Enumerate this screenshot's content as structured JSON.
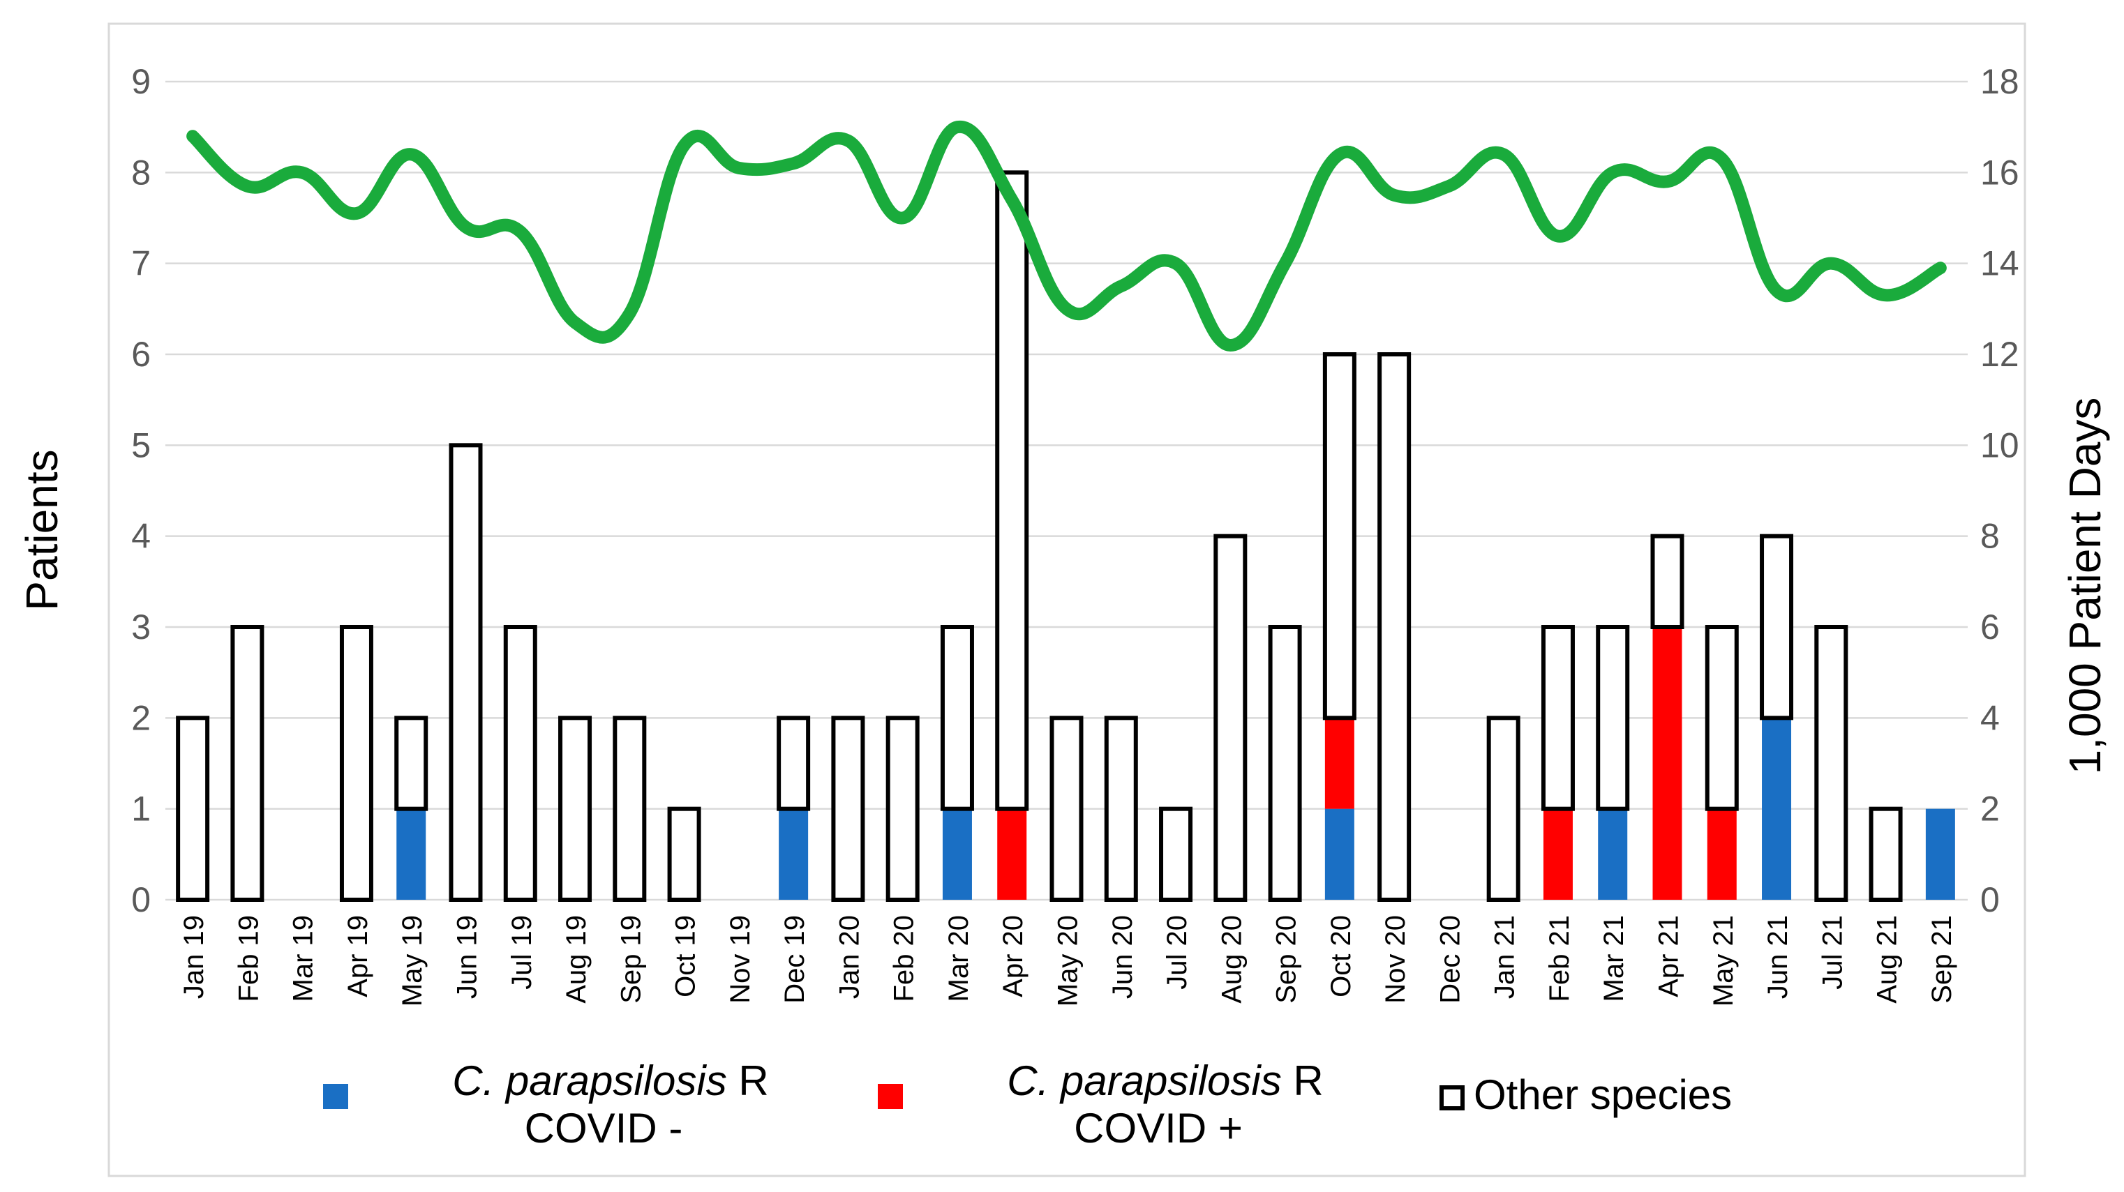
{
  "chart_data": {
    "type": "bar",
    "stacked": true,
    "categories": [
      "Jan 19",
      "Feb 19",
      "Mar 19",
      "Apr 19",
      "May 19",
      "Jun 19",
      "Jul 19",
      "Aug 19",
      "Sep 19",
      "Oct 19",
      "Nov 19",
      "Dec 19",
      "Jan 20",
      "Feb 20",
      "Mar 20",
      "Apr 20",
      "May 20",
      "Jun 20",
      "Jul 20",
      "Aug 20",
      "Sep 20",
      "Oct 20",
      "Nov 20",
      "Dec 20",
      "Jan 21",
      "Feb 21",
      "Mar 21",
      "Apr 21",
      "May 21",
      "Jun 21",
      "Jul 21",
      "Aug 21",
      "Sep 21"
    ],
    "series": [
      {
        "name": "C. parapsilosis R COVID -",
        "italic_part": "C. parapsilosis",
        "suffix": " R",
        "line2": "COVID -",
        "color": "#1a6fc4",
        "style": "filled",
        "values": [
          0,
          0,
          0,
          0,
          1,
          0,
          0,
          0,
          0,
          0,
          0,
          1,
          0,
          0,
          1,
          0,
          0,
          0,
          0,
          0,
          0,
          1,
          0,
          0,
          0,
          0,
          1,
          0,
          0,
          2,
          0,
          0,
          1
        ]
      },
      {
        "name": "C. parapsilosis R COVID +",
        "italic_part": "C. parapsilosis",
        "suffix": " R",
        "line2": "COVID +",
        "color": "#ff0000",
        "style": "filled",
        "values": [
          0,
          0,
          0,
          0,
          0,
          0,
          0,
          0,
          0,
          0,
          0,
          0,
          0,
          0,
          0,
          1,
          0,
          0,
          0,
          0,
          0,
          1,
          0,
          0,
          0,
          1,
          0,
          3,
          1,
          0,
          0,
          0,
          0
        ]
      },
      {
        "name": "Other species",
        "color": "#000000",
        "style": "outline",
        "values": [
          2,
          3,
          0,
          3,
          1,
          5,
          3,
          2,
          2,
          1,
          0,
          1,
          2,
          2,
          2,
          7,
          2,
          2,
          1,
          4,
          3,
          4,
          6,
          0,
          2,
          2,
          2,
          1,
          2,
          2,
          3,
          1,
          0
        ]
      }
    ],
    "line_series": {
      "name": "Patient days (per 1,000)",
      "axis": "right",
      "color": "#1aab3c",
      "values": [
        16.8,
        15.7,
        16.0,
        15.1,
        16.4,
        14.8,
        14.7,
        12.7,
        12.9,
        16.6,
        16.1,
        16.2,
        16.7,
        15.0,
        17.0,
        15.4,
        13.0,
        13.5,
        14.0,
        12.2,
        14.0,
        16.4,
        15.5,
        15.7,
        16.4,
        14.6,
        16.0,
        15.8,
        16.3,
        13.4,
        14.0,
        13.3,
        13.9
      ]
    },
    "ylabel": "Patients",
    "y2label": "1,000 Patient Days",
    "ylim": [
      0,
      9
    ],
    "y2lim": [
      0,
      18
    ],
    "yticks": [
      "0",
      "1",
      "2",
      "3",
      "4",
      "5",
      "6",
      "7",
      "8",
      "9"
    ],
    "y2ticks": [
      "0",
      "2",
      "4",
      "6",
      "8",
      "10",
      "12",
      "14",
      "16",
      "18"
    ],
    "grid": true,
    "legend_position": "bottom"
  }
}
